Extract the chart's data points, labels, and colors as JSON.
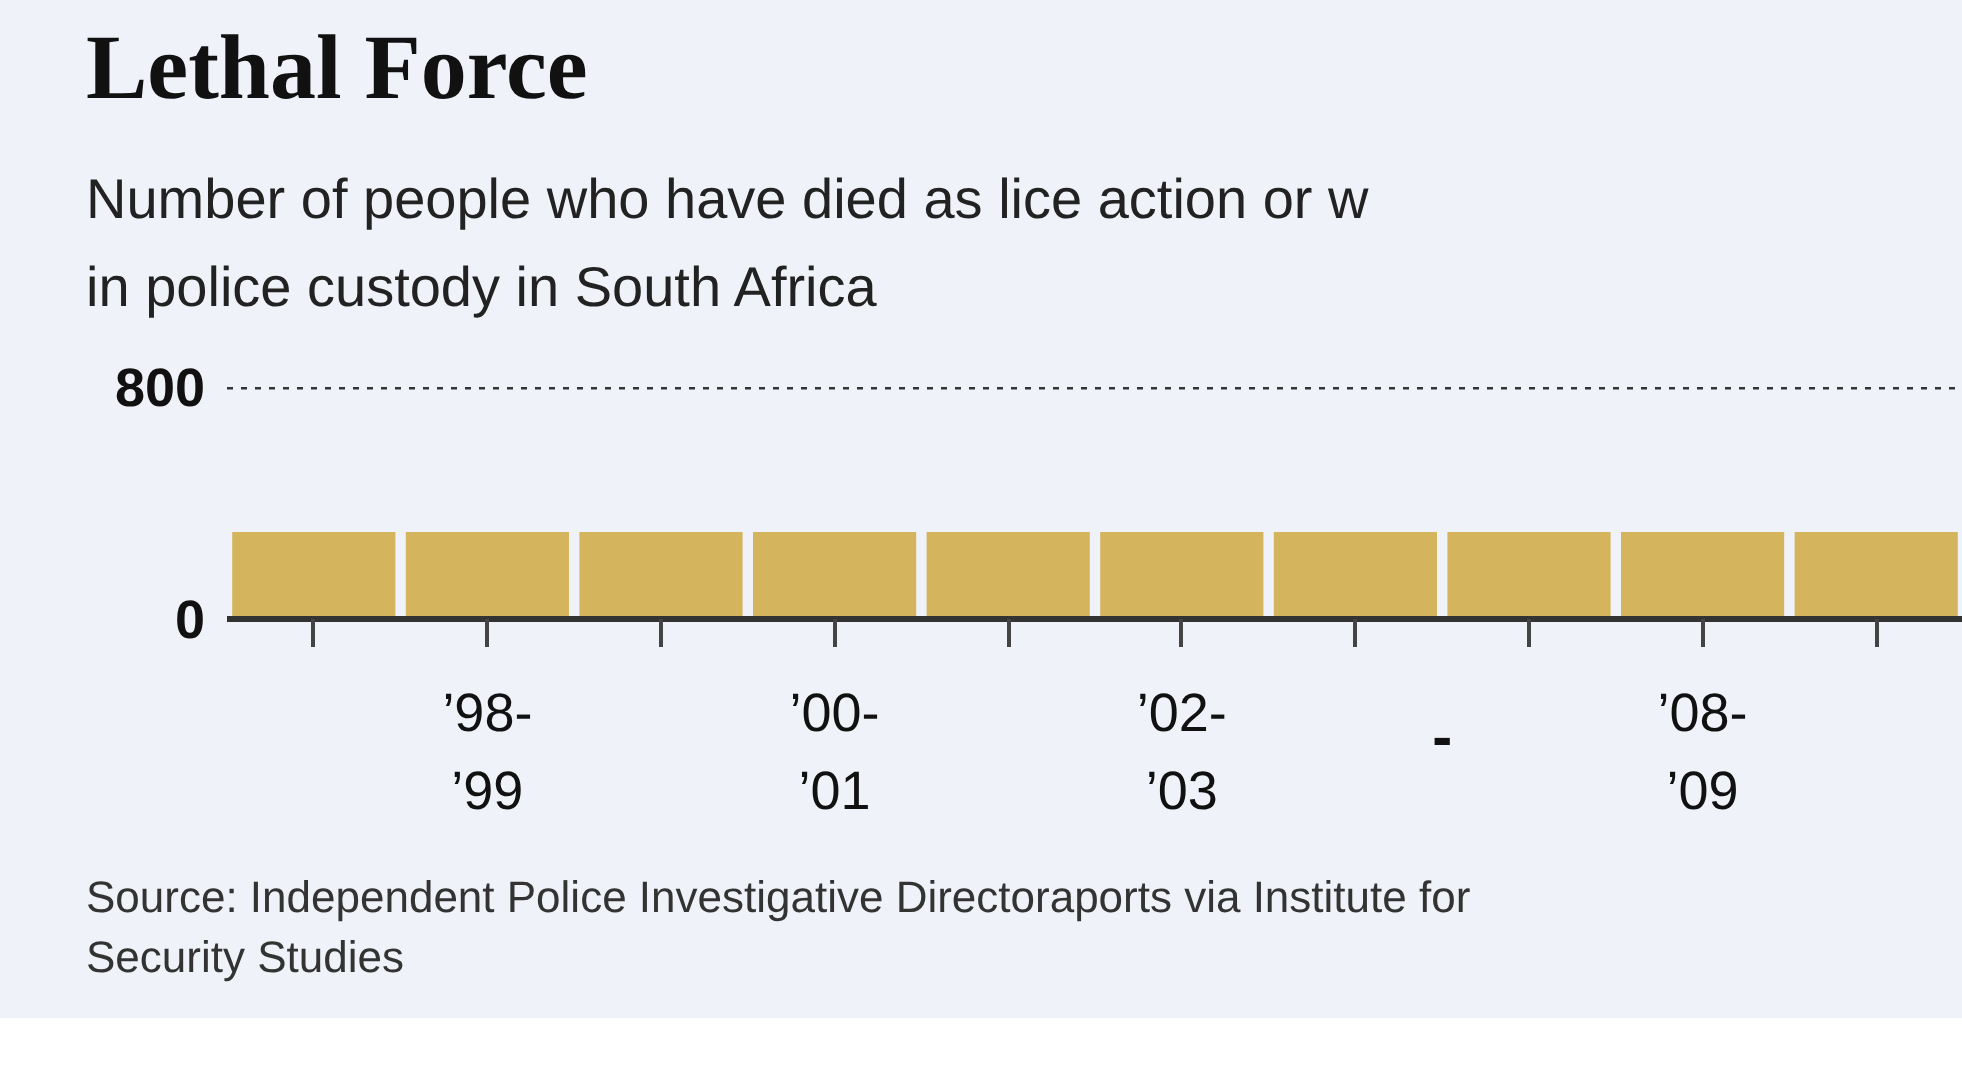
{
  "chart_data": {
    "type": "bar",
    "title": "Lethal Force",
    "subtitle": "Number of people who have died as lice action or w\nin police custody in South Africa",
    "categories": [
      null,
      "’98-’99",
      null,
      "’00-’01",
      null,
      "’02-’03",
      null,
      null,
      "’08-’09",
      null
    ],
    "values": [
      300,
      300,
      300,
      300,
      300,
      300,
      300,
      300,
      300,
      300
    ],
    "color": "#d4b45c",
    "ylim": [
      0,
      800
    ],
    "yticks": [
      0,
      800
    ],
    "ref_lines": [
      {
        "axis": "y",
        "value": 800,
        "line_style": "dotted",
        "color": "#333333"
      }
    ],
    "annotations": [
      "-",
      "Source: Independent Police Investigative Directoraports via Institute for\nSecurity Studies"
    ]
  }
}
